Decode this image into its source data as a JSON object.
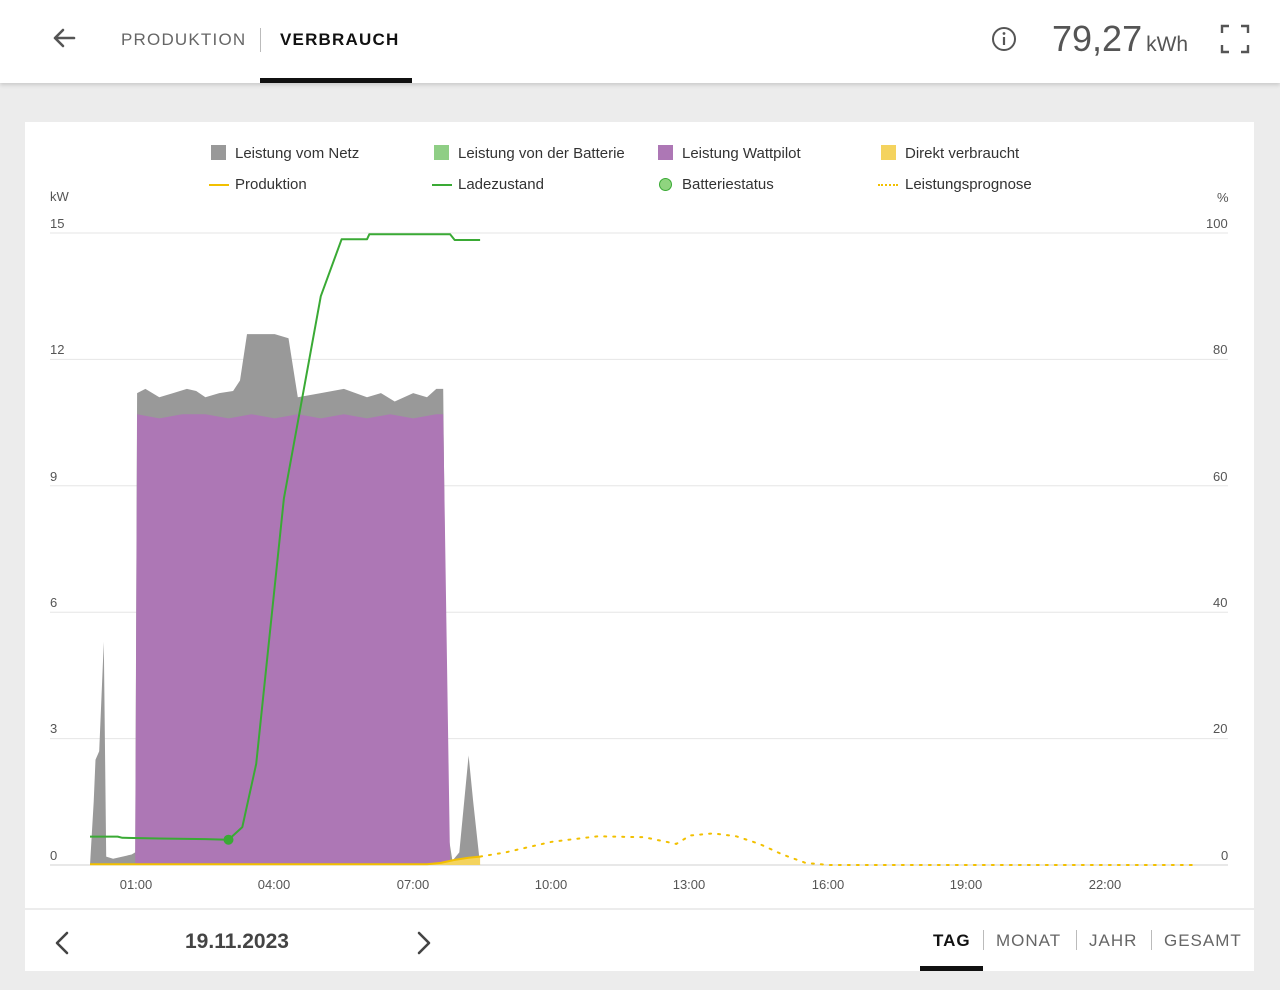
{
  "header": {
    "tabs": [
      "PRODUKTION",
      "VERBRAUCH"
    ],
    "active_tab": "VERBRAUCH",
    "energy_value": "79,27",
    "energy_unit": "kWh"
  },
  "legend": [
    {
      "label": "Leistung vom Netz",
      "kind": "area",
      "color": "#999999"
    },
    {
      "label": "Leistung von der Batterie",
      "kind": "area",
      "color": "#8fce85"
    },
    {
      "label": "Leistung Wattpilot",
      "kind": "area",
      "color": "#ad77b5"
    },
    {
      "label": "Direkt verbraucht",
      "kind": "area",
      "color": "#f4d35e"
    },
    {
      "label": "Produktion",
      "kind": "line",
      "color": "#f2c000"
    },
    {
      "label": "Ladezustand",
      "kind": "line",
      "color": "#3aaa35"
    },
    {
      "label": "Batteriestatus",
      "kind": "dot",
      "color": "#8fd47f"
    },
    {
      "label": "Leistungsprognose",
      "kind": "dotted",
      "color": "#f2c000"
    }
  ],
  "chart_data": {
    "type": "area",
    "y_left": {
      "unit": "kW",
      "range": [
        0,
        15
      ],
      "ticks": [
        "0",
        "3",
        "6",
        "9",
        "12",
        "15"
      ]
    },
    "y_right": {
      "unit": "%",
      "range": [
        0,
        100
      ],
      "ticks": [
        "0",
        "20",
        "40",
        "60",
        "80",
        "100"
      ]
    },
    "x_ticks": [
      {
        "label": "01:00",
        "hour": 1
      },
      {
        "label": "04:00",
        "hour": 4
      },
      {
        "label": "07:00",
        "hour": 7
      },
      {
        "label": "10:00",
        "hour": 10
      },
      {
        "label": "13:00",
        "hour": 13
      },
      {
        "label": "16:00",
        "hour": 16
      },
      {
        "label": "19:00",
        "hour": 19
      },
      {
        "label": "22:00",
        "hour": 22
      }
    ],
    "x_range_hours": [
      0,
      24
    ],
    "grid": true,
    "series": [
      {
        "name": "Leistung vom Netz",
        "axis": "left",
        "style": "area",
        "color": "#999999",
        "points": [
          [
            0,
            0
          ],
          [
            0.08,
            1.5
          ],
          [
            0.12,
            2.5
          ],
          [
            0.2,
            2.7
          ],
          [
            0.3,
            5.3
          ],
          [
            0.35,
            0.2
          ],
          [
            0.5,
            0.15
          ],
          [
            0.9,
            0.25
          ],
          [
            0.98,
            0.3
          ],
          [
            1.02,
            11.2
          ],
          [
            1.2,
            11.3
          ],
          [
            1.5,
            11.1
          ],
          [
            1.8,
            11.2
          ],
          [
            2.1,
            11.3
          ],
          [
            2.3,
            11.25
          ],
          [
            2.5,
            11.1
          ],
          [
            2.8,
            11.2
          ],
          [
            3.1,
            11.25
          ],
          [
            3.25,
            11.5
          ],
          [
            3.4,
            12.6
          ],
          [
            4.0,
            12.6
          ],
          [
            4.3,
            12.5
          ],
          [
            4.5,
            11.1
          ],
          [
            5.0,
            11.2
          ],
          [
            5.5,
            11.3
          ],
          [
            6.0,
            11.1
          ],
          [
            6.3,
            11.2
          ],
          [
            6.6,
            11.0
          ],
          [
            7.0,
            11.2
          ],
          [
            7.3,
            11.1
          ],
          [
            7.5,
            11.3
          ],
          [
            7.65,
            11.3
          ],
          [
            7.75,
            0.8
          ],
          [
            7.85,
            0.1
          ],
          [
            8.0,
            0.3
          ],
          [
            8.2,
            2.6
          ],
          [
            8.3,
            1.5
          ],
          [
            8.45,
            0
          ]
        ]
      },
      {
        "name": "Leistung Wattpilot",
        "axis": "left",
        "style": "area",
        "color": "#ad77b5",
        "points": [
          [
            0.98,
            0
          ],
          [
            1.02,
            10.7
          ],
          [
            1.5,
            10.6
          ],
          [
            2.0,
            10.7
          ],
          [
            2.5,
            10.7
          ],
          [
            3.0,
            10.6
          ],
          [
            3.5,
            10.7
          ],
          [
            4.0,
            10.6
          ],
          [
            4.5,
            10.7
          ],
          [
            5.0,
            10.6
          ],
          [
            5.5,
            10.7
          ],
          [
            6.0,
            10.6
          ],
          [
            6.5,
            10.7
          ],
          [
            7.0,
            10.6
          ],
          [
            7.5,
            10.7
          ],
          [
            7.65,
            10.7
          ],
          [
            7.8,
            0
          ]
        ]
      },
      {
        "name": "Direkt verbraucht",
        "axis": "left",
        "style": "area",
        "color": "#f4d35e",
        "points": [
          [
            7.3,
            0
          ],
          [
            7.6,
            0.05
          ],
          [
            7.9,
            0.12
          ],
          [
            8.2,
            0.17
          ],
          [
            8.45,
            0.2
          ],
          [
            8.45,
            0
          ]
        ]
      },
      {
        "name": "Produktion",
        "axis": "left",
        "style": "line",
        "color": "#f2c000",
        "points": [
          [
            0,
            0.02
          ],
          [
            7.3,
            0.02
          ],
          [
            7.6,
            0.05
          ],
          [
            7.9,
            0.12
          ],
          [
            8.2,
            0.17
          ],
          [
            8.45,
            0.2
          ]
        ]
      },
      {
        "name": "Ladezustand",
        "axis": "right",
        "style": "line",
        "color": "#3aaa35",
        "points": [
          [
            0,
            4.5
          ],
          [
            0.6,
            4.5
          ],
          [
            0.7,
            4.3
          ],
          [
            1.5,
            4.2
          ],
          [
            2.5,
            4.1
          ],
          [
            3.0,
            4.0
          ],
          [
            3.3,
            6.0
          ],
          [
            3.6,
            16.0
          ],
          [
            4.2,
            58.0
          ],
          [
            5.0,
            90.0
          ],
          [
            5.45,
            99.0
          ],
          [
            6.0,
            99.0
          ],
          [
            6.05,
            99.8
          ],
          [
            7.8,
            99.8
          ],
          [
            7.9,
            98.9
          ],
          [
            8.45,
            98.9
          ]
        ]
      },
      {
        "name": "Batteriestatus",
        "axis": "right",
        "style": "marker",
        "color": "#3aaa35",
        "points": [
          [
            3.0,
            4.0
          ]
        ]
      },
      {
        "name": "Leistungsprognose",
        "axis": "left",
        "style": "dotted",
        "color": "#f2c000",
        "points": [
          [
            8.45,
            0.2
          ],
          [
            9.0,
            0.3
          ],
          [
            10.0,
            0.55
          ],
          [
            11.0,
            0.68
          ],
          [
            12.0,
            0.66
          ],
          [
            12.7,
            0.5
          ],
          [
            13.0,
            0.7
          ],
          [
            13.5,
            0.75
          ],
          [
            14.0,
            0.68
          ],
          [
            14.5,
            0.5
          ],
          [
            15.0,
            0.25
          ],
          [
            15.5,
            0.05
          ],
          [
            16.0,
            0.0
          ],
          [
            17.0,
            0.0
          ],
          [
            24.0,
            0.0
          ]
        ]
      }
    ]
  },
  "footer": {
    "date": "19.11.2023",
    "periods": [
      "TAG",
      "MONAT",
      "JAHR",
      "GESAMT"
    ],
    "active_period": "TAG"
  }
}
